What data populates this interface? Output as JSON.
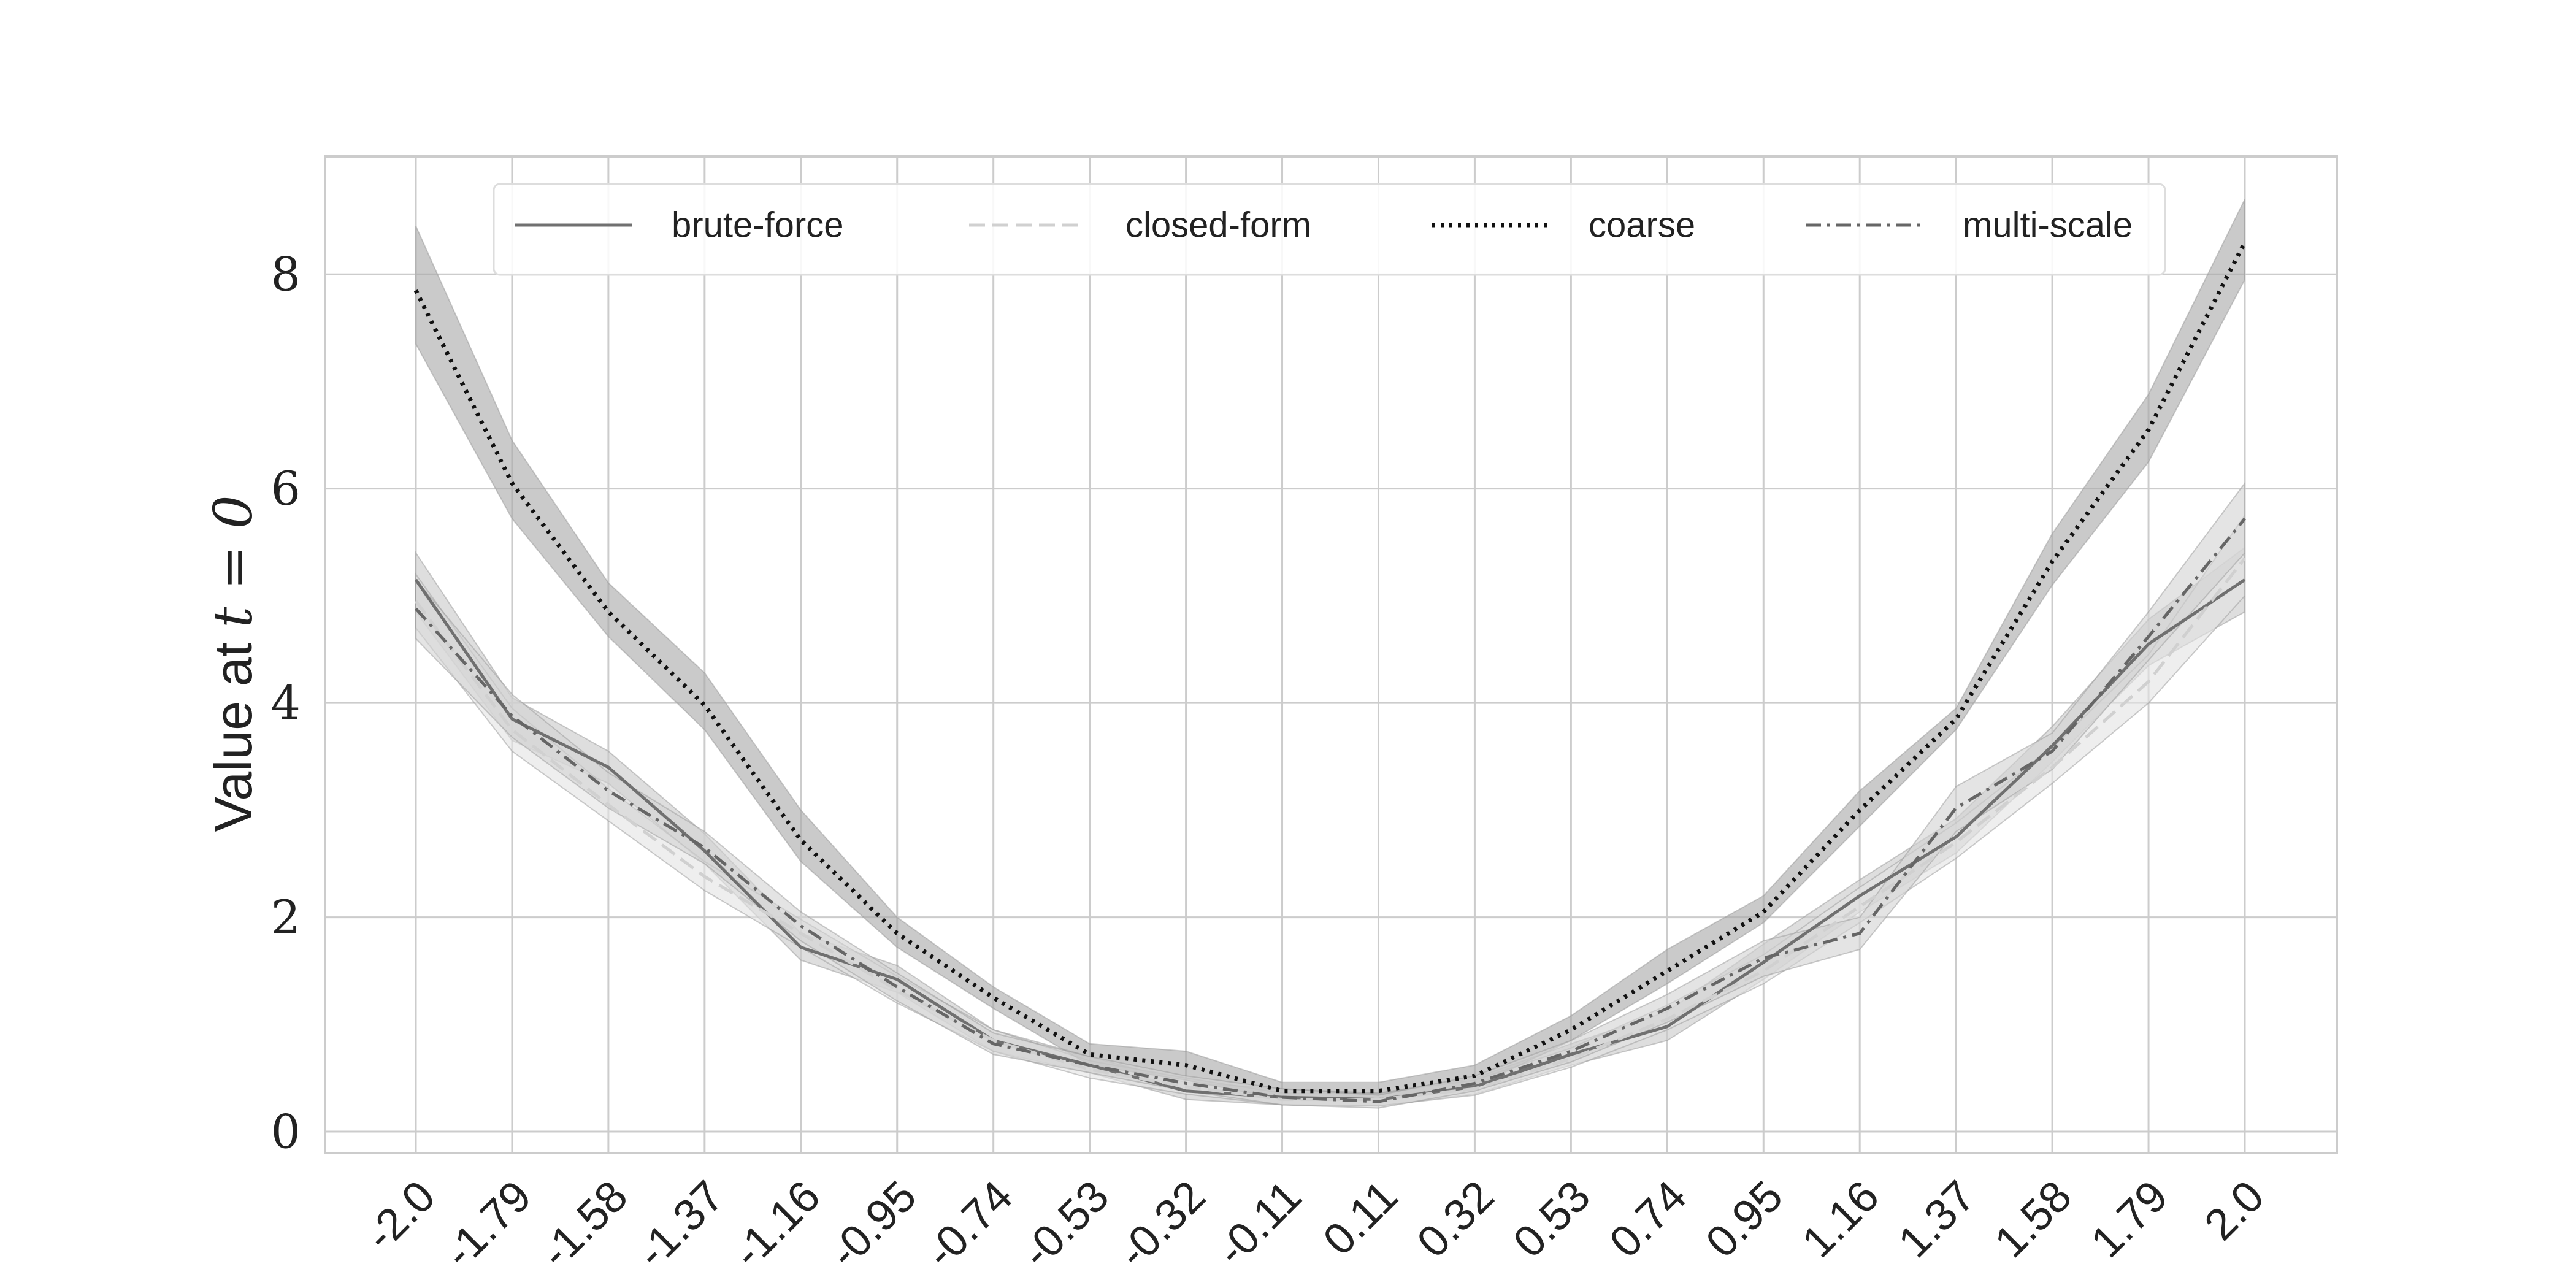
{
  "chart_data": {
    "type": "line",
    "title": "",
    "xlabel": "",
    "ylabel": {
      "text": "Value at ",
      "math": "t = 0"
    },
    "categories": [
      "-2.0",
      "-1.79",
      "-1.58",
      "-1.37",
      "-1.16",
      "-0.95",
      "-0.74",
      "-0.53",
      "-0.32",
      "-0.11",
      "0.11",
      "0.32",
      "0.53",
      "0.74",
      "0.95",
      "1.16",
      "1.37",
      "1.58",
      "1.79",
      "2.0"
    ],
    "ylim": [
      -0.2,
      9.1
    ],
    "yticks": [
      0,
      2,
      4,
      6,
      8
    ],
    "grid": true,
    "legend_position": "top",
    "series": [
      {
        "name": "brute-force",
        "style": "solid",
        "color": "#707070",
        "band_color": "#c8c8c8",
        "values": [
          5.15,
          3.85,
          3.4,
          2.62,
          1.72,
          1.42,
          0.85,
          0.62,
          0.38,
          0.32,
          0.3,
          0.42,
          0.72,
          0.98,
          1.58,
          2.2,
          2.75,
          3.6,
          4.55,
          5.15
        ],
        "lower": [
          4.85,
          3.65,
          3.25,
          2.5,
          1.6,
          1.3,
          0.75,
          0.55,
          0.3,
          0.25,
          0.24,
          0.35,
          0.62,
          0.85,
          1.42,
          2.05,
          2.6,
          3.45,
          4.35,
          4.85
        ],
        "upper": [
          5.4,
          4.05,
          3.55,
          2.78,
          1.85,
          1.55,
          0.95,
          0.7,
          0.46,
          0.4,
          0.36,
          0.5,
          0.82,
          1.12,
          1.75,
          2.35,
          2.92,
          3.78,
          4.78,
          5.45
        ]
      },
      {
        "name": "closed-form",
        "style": "dashed",
        "color": "#d0d0d0",
        "band_color": "#e2e2e2",
        "values": [
          4.95,
          3.75,
          3.05,
          2.38,
          1.85,
          1.32,
          0.85,
          0.58,
          0.42,
          0.3,
          0.3,
          0.4,
          0.68,
          1.05,
          1.5,
          2.1,
          2.7,
          3.4,
          4.2,
          5.35
        ],
        "lower": [
          4.7,
          3.55,
          2.9,
          2.25,
          1.72,
          1.2,
          0.75,
          0.5,
          0.35,
          0.25,
          0.24,
          0.34,
          0.6,
          0.95,
          1.38,
          1.95,
          2.55,
          3.25,
          4.0,
          5.0
        ],
        "upper": [
          5.2,
          3.95,
          3.2,
          2.52,
          1.98,
          1.45,
          0.95,
          0.66,
          0.5,
          0.36,
          0.36,
          0.48,
          0.78,
          1.18,
          1.65,
          2.28,
          2.88,
          3.58,
          4.45,
          5.75
        ]
      },
      {
        "name": "coarse",
        "style": "dotted",
        "color": "#111111",
        "band_color": "#a6a6a6",
        "values": [
          7.85,
          6.05,
          4.85,
          3.98,
          2.72,
          1.85,
          1.25,
          0.72,
          0.62,
          0.38,
          0.38,
          0.52,
          0.95,
          1.5,
          2.05,
          3.0,
          3.85,
          5.32,
          6.55,
          8.3
        ],
        "lower": [
          7.35,
          5.72,
          4.62,
          3.75,
          2.52,
          1.72,
          1.15,
          0.62,
          0.48,
          0.3,
          0.3,
          0.42,
          0.85,
          1.38,
          1.95,
          2.85,
          3.75,
          5.1,
          6.25,
          7.95
        ],
        "upper": [
          8.45,
          6.45,
          5.12,
          4.28,
          3.0,
          2.0,
          1.35,
          0.82,
          0.75,
          0.46,
          0.46,
          0.62,
          1.08,
          1.7,
          2.2,
          3.18,
          3.95,
          5.58,
          6.88,
          8.7
        ]
      },
      {
        "name": "multi-scale",
        "style": "dashdot",
        "color": "#666666",
        "band_color": "#d2d2d2",
        "values": [
          4.88,
          3.88,
          3.18,
          2.65,
          1.92,
          1.35,
          0.82,
          0.62,
          0.45,
          0.32,
          0.28,
          0.45,
          0.75,
          1.15,
          1.62,
          1.85,
          3.02,
          3.55,
          4.62,
          5.72
        ],
        "lower": [
          4.6,
          3.68,
          3.02,
          2.5,
          1.78,
          1.22,
          0.72,
          0.55,
          0.38,
          0.25,
          0.22,
          0.38,
          0.65,
          1.02,
          1.45,
          1.7,
          2.8,
          3.38,
          4.4,
          5.4
        ],
        "upper": [
          5.15,
          4.08,
          3.35,
          2.8,
          2.05,
          1.48,
          0.92,
          0.7,
          0.52,
          0.4,
          0.34,
          0.52,
          0.85,
          1.28,
          1.78,
          2.0,
          3.22,
          3.72,
          4.85,
          6.05
        ]
      }
    ]
  }
}
